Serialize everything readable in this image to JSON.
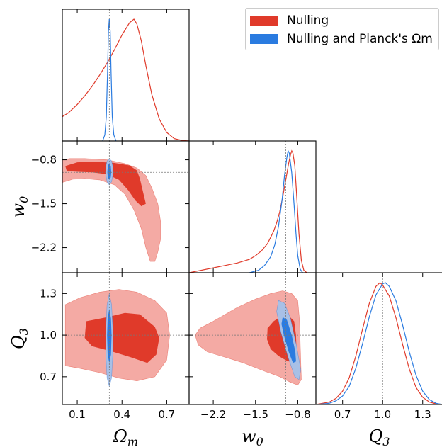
{
  "chart_data": {
    "type": "triangle",
    "parameters": [
      {
        "key": "Om",
        "label": "Ω",
        "sub": "m",
        "range": [
          0.0,
          0.85
        ],
        "ticks": [
          "0.1",
          "0.4",
          "0.7"
        ],
        "tick_values": [
          0.1,
          0.4,
          0.7
        ],
        "marker": 0.315
      },
      {
        "key": "w0",
        "label": "w",
        "sub": "0",
        "range": [
          -2.6,
          -0.5
        ],
        "ticks": [
          "-2.2",
          "-1.5",
          "-0.8"
        ],
        "tick_values": [
          -2.2,
          -1.5,
          -0.8
        ],
        "marker": -1.0
      },
      {
        "key": "Q3",
        "label": "Q",
        "sub": "3",
        "range": [
          0.5,
          1.45
        ],
        "ticks": [
          "0.7",
          "1.0",
          "1.3"
        ],
        "tick_values": [
          0.7,
          1.0,
          1.3
        ],
        "marker": 1.0
      }
    ],
    "series": [
      {
        "name": "Nulling",
        "color": "#e03a2a",
        "light_color": "#f4aaa4",
        "marginals": {
          "Om": {
            "x": [
              0.0,
              0.04,
              0.1,
              0.15,
              0.2,
              0.25,
              0.3,
              0.35,
              0.4,
              0.45,
              0.48,
              0.5,
              0.53,
              0.56,
              0.6,
              0.65,
              0.7,
              0.75,
              0.8,
              0.85
            ],
            "y": [
              0.2,
              0.23,
              0.3,
              0.37,
              0.45,
              0.54,
              0.64,
              0.75,
              0.87,
              0.97,
              1.0,
              0.96,
              0.82,
              0.62,
              0.38,
              0.18,
              0.07,
              0.02,
              0.005,
              0.0
            ]
          },
          "w0": {
            "x": [
              -2.6,
              -2.4,
              -2.2,
              -2.0,
              -1.8,
              -1.6,
              -1.5,
              -1.4,
              -1.3,
              -1.2,
              -1.15,
              -1.1,
              -1.05,
              -1.0,
              -0.95,
              -0.92,
              -0.9,
              -0.88,
              -0.85,
              -0.82,
              -0.78,
              -0.74,
              -0.7,
              -0.65
            ],
            "y": [
              0.0,
              0.02,
              0.04,
              0.06,
              0.08,
              0.11,
              0.14,
              0.18,
              0.24,
              0.34,
              0.41,
              0.5,
              0.62,
              0.76,
              0.9,
              0.97,
              1.0,
              0.98,
              0.88,
              0.65,
              0.32,
              0.1,
              0.02,
              0.0
            ]
          },
          "Q3": {
            "x": [
              0.5,
              0.6,
              0.65,
              0.7,
              0.75,
              0.8,
              0.85,
              0.9,
              0.95,
              0.98,
              1.0,
              1.05,
              1.1,
              1.15,
              1.2,
              1.25,
              1.3,
              1.35,
              1.4,
              1.45
            ],
            "y": [
              0.0,
              0.02,
              0.05,
              0.11,
              0.22,
              0.4,
              0.62,
              0.83,
              0.97,
              1.0,
              0.98,
              0.89,
              0.71,
              0.49,
              0.29,
              0.14,
              0.06,
              0.02,
              0.005,
              0.0
            ]
          }
        },
        "contours": {
          "Om_w0": {
            "outer": [
              [
                0.0,
                -0.8
              ],
              [
                0.05,
                -0.78
              ],
              [
                0.15,
                -0.78
              ],
              [
                0.3,
                -0.8
              ],
              [
                0.42,
                -0.86
              ],
              [
                0.5,
                -0.93
              ],
              [
                0.56,
                -1.05
              ],
              [
                0.6,
                -1.25
              ],
              [
                0.64,
                -1.5
              ],
              [
                0.66,
                -1.8
              ],
              [
                0.66,
                -2.05
              ],
              [
                0.64,
                -2.27
              ],
              [
                0.62,
                -2.42
              ],
              [
                0.59,
                -2.42
              ],
              [
                0.56,
                -2.2
              ],
              [
                0.53,
                -1.9
              ],
              [
                0.48,
                -1.6
              ],
              [
                0.42,
                -1.35
              ],
              [
                0.35,
                -1.2
              ],
              [
                0.25,
                -1.12
              ],
              [
                0.15,
                -1.1
              ],
              [
                0.07,
                -1.11
              ],
              [
                0.0,
                -1.16
              ]
            ],
            "inner": [
              [
                0.02,
                -0.9
              ],
              [
                0.1,
                -0.84
              ],
              [
                0.22,
                -0.83
              ],
              [
                0.35,
                -0.85
              ],
              [
                0.45,
                -0.89
              ],
              [
                0.5,
                -0.97
              ],
              [
                0.52,
                -1.1
              ],
              [
                0.54,
                -1.3
              ],
              [
                0.56,
                -1.5
              ],
              [
                0.53,
                -1.54
              ],
              [
                0.49,
                -1.45
              ],
              [
                0.44,
                -1.28
              ],
              [
                0.38,
                -1.12
              ],
              [
                0.3,
                -1.03
              ],
              [
                0.2,
                -1.0
              ],
              [
                0.1,
                -0.99
              ],
              [
                0.03,
                -0.98
              ]
            ]
          },
          "Om_Q3": {
            "outer": [
              [
                0.02,
                1.22
              ],
              [
                0.12,
                1.27
              ],
              [
                0.25,
                1.31
              ],
              [
                0.38,
                1.33
              ],
              [
                0.5,
                1.31
              ],
              [
                0.62,
                1.25
              ],
              [
                0.7,
                1.16
              ],
              [
                0.72,
                1.0
              ],
              [
                0.7,
                0.82
              ],
              [
                0.62,
                0.7
              ],
              [
                0.5,
                0.67
              ],
              [
                0.38,
                0.69
              ],
              [
                0.25,
                0.73
              ],
              [
                0.12,
                0.76
              ],
              [
                0.02,
                0.78
              ]
            ],
            "inner": [
              [
                0.16,
                1.1
              ],
              [
                0.3,
                1.13
              ],
              [
                0.42,
                1.16
              ],
              [
                0.52,
                1.15
              ],
              [
                0.62,
                1.06
              ],
              [
                0.65,
                0.98
              ],
              [
                0.63,
                0.86
              ],
              [
                0.57,
                0.8
              ],
              [
                0.46,
                0.84
              ],
              [
                0.34,
                0.88
              ],
              [
                0.2,
                0.92
              ],
              [
                0.15,
                0.98
              ]
            ]
          },
          "w0_Q3": {
            "outer": [
              [
                -2.5,
                1.0
              ],
              [
                -2.42,
                1.05
              ],
              [
                -2.2,
                1.1
              ],
              [
                -2.0,
                1.15
              ],
              [
                -1.8,
                1.2
              ],
              [
                -1.5,
                1.26
              ],
              [
                -1.25,
                1.3
              ],
              [
                -1.05,
                1.32
              ],
              [
                -0.9,
                1.3
              ],
              [
                -0.8,
                1.25
              ],
              [
                -0.77,
                1.1
              ],
              [
                -0.76,
                0.95
              ],
              [
                -0.75,
                0.8
              ],
              [
                -0.74,
                0.68
              ],
              [
                -0.8,
                0.64
              ],
              [
                -0.92,
                0.66
              ],
              [
                -1.1,
                0.7
              ],
              [
                -1.35,
                0.74
              ],
              [
                -1.7,
                0.8
              ],
              [
                -2.0,
                0.84
              ],
              [
                -2.3,
                0.88
              ],
              [
                -2.45,
                0.93
              ]
            ],
            "inner": [
              [
                -1.3,
                1.05
              ],
              [
                -1.2,
                1.1
              ],
              [
                -1.1,
                1.13
              ],
              [
                -0.95,
                1.14
              ],
              [
                -0.86,
                1.1
              ],
              [
                -0.83,
                1.0
              ],
              [
                -0.82,
                0.88
              ],
              [
                -0.86,
                0.82
              ],
              [
                -0.96,
                0.81
              ],
              [
                -1.12,
                0.85
              ],
              [
                -1.25,
                0.9
              ],
              [
                -1.31,
                0.97
              ]
            ]
          }
        }
      },
      {
        "name": "Nulling and Planck's Ωm",
        "color": "#2a7be0",
        "light_color": "#a8c0e6",
        "marginals": {
          "Om": {
            "x": [
              0.27,
              0.285,
              0.295,
              0.303,
              0.309,
              0.315,
              0.321,
              0.327,
              0.335,
              0.345,
              0.36
            ],
            "y": [
              0.0,
              0.05,
              0.2,
              0.55,
              0.9,
              1.0,
              0.9,
              0.55,
              0.2,
              0.05,
              0.0
            ]
          },
          "w0": {
            "x": [
              -1.6,
              -1.45,
              -1.35,
              -1.25,
              -1.18,
              -1.12,
              -1.06,
              -1.02,
              -0.98,
              -0.96,
              -0.94,
              -0.9,
              -0.86,
              -0.83,
              -0.8,
              -0.76,
              -0.72
            ],
            "y": [
              0.0,
              0.02,
              0.06,
              0.13,
              0.23,
              0.38,
              0.6,
              0.8,
              0.95,
              1.0,
              0.98,
              0.82,
              0.55,
              0.32,
              0.14,
              0.03,
              0.0
            ]
          },
          "Q3": {
            "x": [
              0.5,
              0.6,
              0.65,
              0.7,
              0.75,
              0.8,
              0.85,
              0.9,
              0.95,
              1.0,
              1.02,
              1.05,
              1.1,
              1.15,
              1.2,
              1.25,
              1.3,
              1.35,
              1.4,
              1.45
            ],
            "y": [
              0.0,
              0.01,
              0.03,
              0.07,
              0.15,
              0.3,
              0.5,
              0.72,
              0.9,
              0.99,
              1.0,
              0.97,
              0.85,
              0.65,
              0.43,
              0.24,
              0.11,
              0.04,
              0.01,
              0.0
            ]
          }
        },
        "contours": {
          "Om_w0": {
            "outer": [
              [
                0.315,
                -0.78
              ],
              [
                0.33,
                -0.82
              ],
              [
                0.338,
                -0.9
              ],
              [
                0.338,
                -1.05
              ],
              [
                0.33,
                -1.15
              ],
              [
                0.315,
                -1.2
              ],
              [
                0.3,
                -1.15
              ],
              [
                0.292,
                -1.05
              ],
              [
                0.292,
                -0.9
              ],
              [
                0.3,
                -0.82
              ]
            ],
            "inner": [
              [
                0.315,
                -0.85
              ],
              [
                0.325,
                -0.9
              ],
              [
                0.328,
                -1.0
              ],
              [
                0.325,
                -1.08
              ],
              [
                0.315,
                -1.12
              ],
              [
                0.305,
                -1.08
              ],
              [
                0.302,
                -1.0
              ],
              [
                0.305,
                -0.9
              ]
            ]
          },
          "Om_Q3": {
            "outer": [
              [
                0.315,
                1.3
              ],
              [
                0.33,
                1.22
              ],
              [
                0.338,
                1.05
              ],
              [
                0.338,
                0.85
              ],
              [
                0.33,
                0.69
              ],
              [
                0.315,
                0.63
              ],
              [
                0.3,
                0.69
              ],
              [
                0.292,
                0.85
              ],
              [
                0.292,
                1.05
              ],
              [
                0.3,
                1.22
              ]
            ],
            "inner": [
              [
                0.315,
                1.19
              ],
              [
                0.326,
                1.12
              ],
              [
                0.33,
                1.0
              ],
              [
                0.326,
                0.86
              ],
              [
                0.315,
                0.8
              ],
              [
                0.304,
                0.86
              ],
              [
                0.3,
                1.0
              ],
              [
                0.304,
                1.12
              ]
            ]
          },
          "w0_Q3": {
            "outer": [
              [
                -1.12,
                1.25
              ],
              [
                -1.02,
                1.23
              ],
              [
                -0.92,
                1.12
              ],
              [
                -0.82,
                0.92
              ],
              [
                -0.75,
                0.75
              ],
              [
                -0.78,
                0.68
              ],
              [
                -0.85,
                0.7
              ],
              [
                -0.96,
                0.84
              ],
              [
                -1.08,
                1.02
              ],
              [
                -1.15,
                1.17
              ]
            ],
            "inner": [
              [
                -1.05,
                1.13
              ],
              [
                -0.98,
                1.11
              ],
              [
                -0.9,
                1.0
              ],
              [
                -0.84,
                0.88
              ],
              [
                -0.83,
                0.81
              ],
              [
                -0.88,
                0.8
              ],
              [
                -0.95,
                0.88
              ],
              [
                -1.03,
                1.0
              ],
              [
                -1.07,
                1.08
              ]
            ]
          }
        }
      }
    ],
    "legend_position": "top-right",
    "grid": false
  }
}
